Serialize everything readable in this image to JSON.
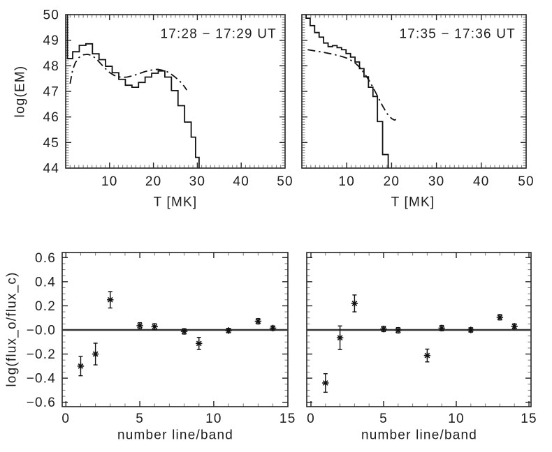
{
  "page": {
    "background": "#ffffff",
    "ink": "#1d1d1d"
  },
  "chart_data": [
    {
      "id": "em-1728",
      "type": "line",
      "annotation": "17:28 − 17:29 UT",
      "xlabel": "T [MK]",
      "ylabel": "log(EM)",
      "xlim": [
        0,
        50
      ],
      "ylim": [
        44,
        50
      ],
      "xticks": [
        10,
        20,
        30,
        40,
        50
      ],
      "xtick_labels": [
        "10",
        "20",
        "30",
        "40",
        "50"
      ],
      "yticks": [
        44,
        45,
        46,
        47,
        48,
        49,
        50
      ],
      "ytick_labels": [
        "44",
        "45",
        "46",
        "47",
        "48",
        "49",
        "50"
      ],
      "x_minor_step": 1,
      "y_minor_step": 0.1,
      "grid": false,
      "legend": false,
      "series": [
        {
          "name": "observed DEM histogram",
          "style": "steps-solid",
          "bin_edges": [
            0.4,
            1.6,
            3.1,
            4.6,
            6.1,
            7.6,
            9.1,
            10.6,
            12.1,
            13.6,
            15.1,
            16.6,
            18.1,
            19.6,
            21.1,
            22.6,
            24.1,
            25.6,
            27.1,
            28.6,
            29.6,
            30.4
          ],
          "values": [
            48.28,
            48.55,
            48.8,
            48.86,
            48.47,
            48.24,
            47.98,
            47.73,
            47.47,
            47.24,
            47.16,
            47.35,
            47.56,
            47.71,
            47.8,
            47.56,
            47.03,
            46.44,
            45.8,
            45.21,
            44.42
          ]
        },
        {
          "name": "model fit",
          "style": "dash-dot",
          "points": [
            [
              1.0,
              47.3
            ],
            [
              1.6,
              47.85
            ],
            [
              2.2,
              48.12
            ],
            [
              3,
              48.32
            ],
            [
              4,
              48.43
            ],
            [
              5,
              48.45
            ],
            [
              6,
              48.4
            ],
            [
              7,
              48.27
            ],
            [
              8,
              48.08
            ],
            [
              9,
              47.9
            ],
            [
              10,
              47.74
            ],
            [
              11,
              47.63
            ],
            [
              12,
              47.57
            ],
            [
              13,
              47.55
            ],
            [
              14,
              47.56
            ],
            [
              15,
              47.6
            ],
            [
              16,
              47.65
            ],
            [
              17,
              47.71
            ],
            [
              18,
              47.77
            ],
            [
              19,
              47.81
            ],
            [
              20,
              47.85
            ],
            [
              21,
              47.86
            ],
            [
              22,
              47.83
            ],
            [
              23,
              47.78
            ],
            [
              24,
              47.68
            ],
            [
              25,
              47.55
            ],
            [
              26,
              47.4
            ],
            [
              27,
              47.2
            ],
            [
              27.6,
              47.05
            ]
          ]
        }
      ]
    },
    {
      "id": "em-1735",
      "type": "line",
      "annotation": "17:35 − 17:36 UT",
      "xlabel": "T [MK]",
      "ylabel": "",
      "xlim": [
        0,
        50
      ],
      "ylim": [
        44,
        50
      ],
      "xticks": [
        10,
        20,
        30,
        40,
        50
      ],
      "xtick_labels": [
        "10",
        "20",
        "30",
        "40",
        "50"
      ],
      "yticks": [
        44,
        45,
        46,
        47,
        48,
        49,
        50
      ],
      "ytick_labels": [],
      "x_minor_step": 1,
      "y_minor_step": 0.1,
      "grid": false,
      "legend": false,
      "series": [
        {
          "name": "observed DEM histogram",
          "style": "steps-solid",
          "bin_edges": [
            0.95,
            1.85,
            2.85,
            3.85,
            4.85,
            5.85,
            6.85,
            7.85,
            8.85,
            9.85,
            10.85,
            11.85,
            12.85,
            13.85,
            14.85,
            15.85,
            16.85,
            18.0,
            19.25
          ],
          "values": [
            49.86,
            49.57,
            49.3,
            49.12,
            48.89,
            48.75,
            48.79,
            48.71,
            48.63,
            48.48,
            48.34,
            48.15,
            47.89,
            47.57,
            47.16,
            46.8,
            45.82,
            44.53
          ]
        },
        {
          "name": "model fit",
          "style": "dash-dot",
          "points": [
            [
              1.3,
              48.63
            ],
            [
              3,
              48.58
            ],
            [
              5,
              48.52
            ],
            [
              7,
              48.45
            ],
            [
              9,
              48.36
            ],
            [
              10,
              48.3
            ],
            [
              11,
              48.21
            ],
            [
              12,
              48.09
            ],
            [
              13,
              47.92
            ],
            [
              14,
              47.69
            ],
            [
              15,
              47.42
            ],
            [
              16,
              47.11
            ],
            [
              17,
              46.77
            ],
            [
              18,
              46.43
            ],
            [
              19,
              46.13
            ],
            [
              20,
              45.94
            ],
            [
              20.6,
              45.88
            ],
            [
              21,
              45.9
            ]
          ]
        }
      ]
    },
    {
      "id": "fluxratio-1728",
      "type": "scatter",
      "annotation": "",
      "xlabel": "number line/band",
      "ylabel": "log(flux_o/flux_c)",
      "xlim": [
        0,
        15
      ],
      "ylim": [
        -0.6,
        0.6
      ],
      "xticks": [
        0,
        5,
        10,
        15
      ],
      "xtick_labels": [
        "0",
        "5",
        "10",
        "15"
      ],
      "yticks": [
        -0.6,
        -0.4,
        -0.2,
        0,
        0.2,
        0.4,
        0.6
      ],
      "ytick_labels": [
        "−0.6",
        "−0.4",
        "−0.2",
        "−0.0",
        "0.2",
        "0.4",
        "0.6"
      ],
      "x_minor_step": 1,
      "y_minor_step": 0.05,
      "grid": false,
      "legend": false,
      "zero_line": true,
      "marker": "asterisk",
      "points": [
        {
          "x": 1,
          "y": -0.3,
          "err": 0.08
        },
        {
          "x": 2,
          "y": -0.2,
          "err": 0.09
        },
        {
          "x": 3,
          "y": 0.25,
          "err": 0.068
        },
        {
          "x": 5,
          "y": 0.035,
          "err": 0.025
        },
        {
          "x": 6,
          "y": 0.027,
          "err": 0.025
        },
        {
          "x": 8,
          "y": -0.012,
          "err": 0.022
        },
        {
          "x": 9,
          "y": -0.112,
          "err": 0.05
        },
        {
          "x": 11,
          "y": -0.005,
          "err": 0.018
        },
        {
          "x": 13,
          "y": 0.072,
          "err": 0.022
        },
        {
          "x": 14,
          "y": 0.015,
          "err": 0.018
        }
      ]
    },
    {
      "id": "fluxratio-1735",
      "type": "scatter",
      "annotation": "",
      "xlabel": "number line/band",
      "ylabel": "",
      "xlim": [
        0,
        15
      ],
      "ylim": [
        -0.6,
        0.6
      ],
      "xticks": [
        0,
        5,
        10,
        15
      ],
      "xtick_labels": [
        "0",
        "5",
        "10",
        "15"
      ],
      "yticks": [
        -0.6,
        -0.4,
        -0.2,
        0,
        0.2,
        0.4,
        0.6
      ],
      "ytick_labels": [],
      "x_minor_step": 1,
      "y_minor_step": 0.05,
      "grid": false,
      "legend": false,
      "zero_line": true,
      "marker": "asterisk",
      "points": [
        {
          "x": 1,
          "y": -0.44,
          "err": 0.077
        },
        {
          "x": 2,
          "y": -0.065,
          "err": 0.098
        },
        {
          "x": 3,
          "y": 0.22,
          "err": 0.07
        },
        {
          "x": 5,
          "y": 0.008,
          "err": 0.022
        },
        {
          "x": 6,
          "y": -0.003,
          "err": 0.022
        },
        {
          "x": 8,
          "y": -0.212,
          "err": 0.053
        },
        {
          "x": 9,
          "y": 0.015,
          "err": 0.022
        },
        {
          "x": 11,
          "y": 0.0,
          "err": 0.018
        },
        {
          "x": 13,
          "y": 0.105,
          "err": 0.022
        },
        {
          "x": 14,
          "y": 0.03,
          "err": 0.02
        }
      ]
    }
  ]
}
